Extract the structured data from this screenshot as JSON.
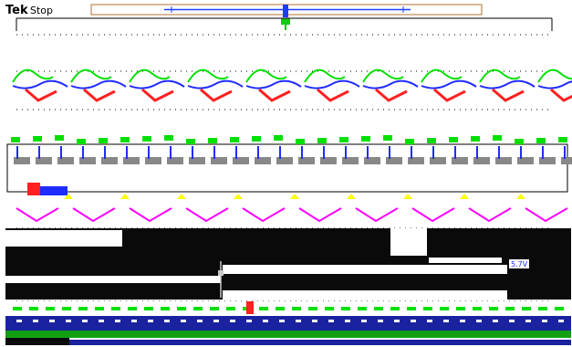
{
  "header": {
    "brand": "Tek",
    "status": "Stop"
  },
  "lower_panel": {
    "badge_text": "5.7V"
  },
  "colors": {
    "background": "#ffffff",
    "frame": "#000000",
    "record_bar": "#b07030",
    "trigger_blue": "#1e3cff",
    "trigger_green": "#14c814",
    "ch_green": "#00e000",
    "ch_blue": "#1f2cff",
    "ch_red": "#ff2020",
    "ch_magenta": "#ff00ff",
    "ch_yellow": "#ffff00",
    "dark_panel": "#0a0a0a",
    "bottom_blue": "#1a22a0",
    "bottom_green": "#12a012",
    "marker_pink": "#ff2ad0"
  },
  "icons": {
    "trigger_marker": "down-triangle-icon",
    "cursor_marker": "diamond-marker-icon"
  }
}
